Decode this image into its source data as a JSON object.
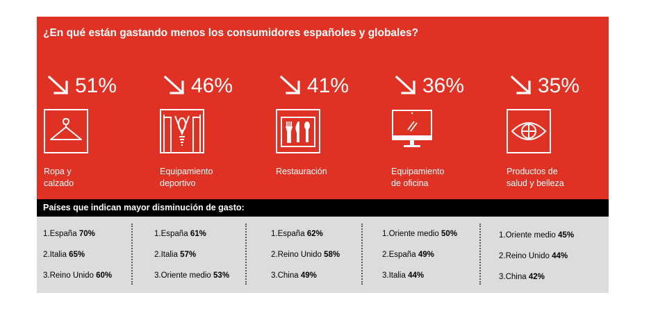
{
  "title": "¿En qué están gastando menos los consumidores españoles y globales?",
  "categories": [
    {
      "percent": "51%",
      "icon": "hanger-icon",
      "label_lines": [
        "Ropa y",
        "calzado"
      ]
    },
    {
      "percent": "46%",
      "icon": "sports-jersey-icon",
      "label_lines": [
        "Equipamiento",
        "deportivo"
      ]
    },
    {
      "percent": "41%",
      "icon": "cutlery-icon",
      "label_lines": [
        "Restauración"
      ]
    },
    {
      "percent": "36%",
      "icon": "monitor-icon",
      "label_lines": [
        "Equipamiento",
        "de oficina"
      ]
    },
    {
      "percent": "35%",
      "icon": "eye-icon",
      "label_lines": [
        "Productos de",
        "salud y belleza"
      ]
    }
  ],
  "countries_header": "Países que indican mayor disminución de gasto:",
  "countries": [
    [
      {
        "name": "1.España",
        "value": "70%"
      },
      {
        "name": "2.Italia",
        "value": "65%"
      },
      {
        "name": "3.Reino Unido",
        "value": "60%"
      }
    ],
    [
      {
        "name": "1.España",
        "value": "61%"
      },
      {
        "name": "2.Italia",
        "value": "57%"
      },
      {
        "name": "3.Oriente medio",
        "value": "53%"
      }
    ],
    [
      {
        "name": "1.España",
        "value": "62%"
      },
      {
        "name": "2.Reino Unido",
        "value": "58%"
      },
      {
        "name": "3.China",
        "value": "49%"
      }
    ],
    [
      {
        "name": "1.Oriente medio",
        "value": "50%"
      },
      {
        "name": "2.España",
        "value": "49%"
      },
      {
        "name": "3.Italia",
        "value": "44%"
      }
    ],
    [
      {
        "name": "1.Oriente medio",
        "value": "45%"
      },
      {
        "name": "2.Reino Unido",
        "value": "44%"
      },
      {
        "name": "3.China",
        "value": "42%"
      }
    ]
  ],
  "colors": {
    "accent_red": "#e03224",
    "header_black": "#000000",
    "table_gray": "#dcdcdc",
    "text_white": "#ffffff"
  }
}
